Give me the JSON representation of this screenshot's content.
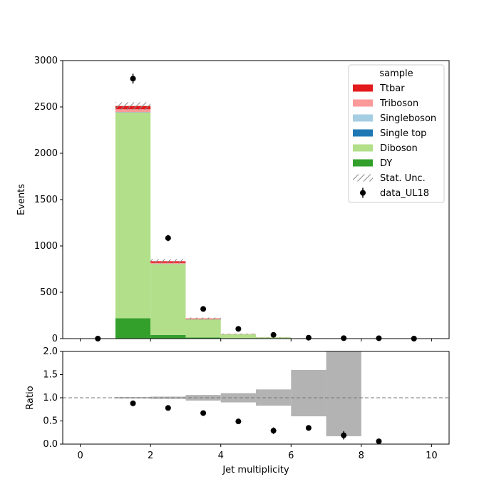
{
  "chart_data": [
    {
      "type": "bar",
      "stacked": true,
      "panel": "main",
      "ylabel": "Events",
      "xlim": [
        -0.5,
        10.5
      ],
      "ylim": [
        0,
        3000
      ],
      "yticks": [
        0,
        500,
        1000,
        1500,
        2000,
        2500,
        3000
      ],
      "bin_edges": [
        0,
        1,
        2,
        3,
        4,
        5,
        6,
        7,
        8,
        9,
        10
      ],
      "legend": {
        "title": "sample",
        "placement": "top-right",
        "entries": [
          {
            "label": "Ttbar",
            "kind": "patch",
            "color": "#e31a1c"
          },
          {
            "label": "Triboson",
            "kind": "patch",
            "color": "#fb9a99"
          },
          {
            "label": "Singleboson",
            "kind": "patch",
            "color": "#a6cee3"
          },
          {
            "label": "Single top",
            "kind": "patch",
            "color": "#1f78b4"
          },
          {
            "label": "Diboson",
            "kind": "patch",
            "color": "#b2df8a"
          },
          {
            "label": "DY",
            "kind": "patch",
            "color": "#33a02c"
          },
          {
            "label": "Stat. Unc.",
            "kind": "hatch",
            "color": "#888888"
          },
          {
            "label": "data_UL18",
            "kind": "errorbar",
            "color": "#000000"
          }
        ]
      },
      "series": [
        {
          "name": "DY",
          "color": "#33a02c",
          "values": [
            0,
            220,
            40,
            12,
            4,
            1,
            0.5,
            0.2,
            0,
            0
          ]
        },
        {
          "name": "Diboson",
          "color": "#b2df8a",
          "values": [
            0,
            2220,
            765,
            195,
            42,
            12,
            2.5,
            0.5,
            0,
            0
          ]
        },
        {
          "name": "Single top",
          "color": "#1f78b4",
          "values": [
            0,
            2,
            1,
            0.5,
            0.2,
            0,
            0,
            0,
            0,
            0
          ]
        },
        {
          "name": "Singleboson",
          "color": "#a6cee3",
          "values": [
            0,
            2,
            1,
            0.5,
            0.2,
            0,
            0,
            0,
            0,
            0
          ]
        },
        {
          "name": "Triboson",
          "color": "#fb9a99",
          "values": [
            0,
            31,
            10,
            3,
            1,
            0.3,
            0,
            0,
            0,
            0
          ]
        },
        {
          "name": "Ttbar",
          "color": "#e31a1c",
          "values": [
            0,
            35,
            18,
            6,
            1.5,
            0.4,
            0,
            0,
            0,
            0
          ]
        }
      ],
      "stat_unc": [
        0,
        40,
        22,
        10,
        5,
        2,
        1.5,
        1,
        0,
        0
      ],
      "data": {
        "name": "data_UL18",
        "x": [
          0.5,
          1.5,
          2.5,
          3.5,
          4.5,
          5.5,
          6.5,
          7.5,
          8.5,
          9.5
        ],
        "y": [
          0,
          2805,
          1085,
          320,
          105,
          40,
          10,
          5,
          4,
          0
        ],
        "yerr": [
          0,
          53,
          33,
          18,
          10,
          6,
          3,
          2.2,
          2,
          0
        ]
      }
    },
    {
      "type": "bar",
      "panel": "ratio",
      "xlabel": "Jet multiplicity",
      "ylabel": "Ratio",
      "xlim": [
        -0.5,
        10.5
      ],
      "ylim": [
        0,
        2
      ],
      "xticks": [
        0,
        2,
        4,
        6,
        8,
        10
      ],
      "yticks": [
        0.0,
        0.5,
        1.0,
        1.5,
        2.0
      ],
      "reference_line": 1.0,
      "unc_band": {
        "bin_edges": [
          1,
          2,
          3,
          4,
          5,
          6,
          7,
          8
        ],
        "low": [
          0.985,
          0.975,
          0.94,
          0.9,
          0.83,
          0.6,
          0.17
        ],
        "high": [
          1.015,
          1.025,
          1.06,
          1.1,
          1.18,
          1.6,
          2.0
        ]
      },
      "points": {
        "x": [
          1.5,
          2.5,
          3.5,
          4.5,
          5.5,
          6.5,
          7.5,
          8.5
        ],
        "y": [
          0.88,
          0.78,
          0.67,
          0.49,
          0.29,
          0.35,
          0.19,
          0.06
        ],
        "yerr": [
          0.02,
          0.03,
          0.04,
          0.05,
          0.07,
          0.0,
          0.09,
          0.03
        ]
      }
    }
  ]
}
